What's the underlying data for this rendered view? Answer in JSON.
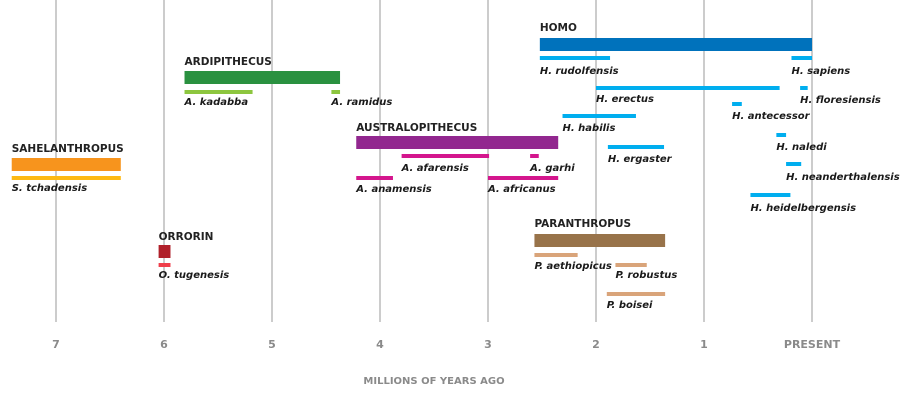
{
  "chart_data": {
    "type": "timeline",
    "title": "",
    "xlabel": "MILLIONS OF YEARS AGO",
    "ylabel": "",
    "xlim": [
      7.5,
      0
    ],
    "grid": true,
    "x_ticks": [
      {
        "value": 7,
        "label": "7"
      },
      {
        "value": 6,
        "label": "6"
      },
      {
        "value": 5,
        "label": "5"
      },
      {
        "value": 4,
        "label": "4"
      },
      {
        "value": 3,
        "label": "3"
      },
      {
        "value": 2,
        "label": "2"
      },
      {
        "value": 1,
        "label": "1"
      },
      {
        "value": 0,
        "label": "PRESENT"
      }
    ],
    "genera": [
      {
        "name": "SAHELANTHROPUS",
        "color": "#f7941d",
        "species_color": "#fdb913",
        "start": 7.41,
        "end": 6.4,
        "row": 0,
        "species": [
          {
            "name": "S. tchadensis",
            "start": 7.41,
            "end": 6.4,
            "row": 0
          }
        ]
      },
      {
        "name": "ORRORIN",
        "color": "#b0202a",
        "species_color": "#ef3e4a",
        "start": 6.05,
        "end": 5.94,
        "row": 0,
        "species": [
          {
            "name": "O. tugenesis",
            "start": 6.05,
            "end": 5.94,
            "row": 0
          }
        ]
      },
      {
        "name": "ARDIPITHECUS",
        "color": "#2a9140",
        "species_color": "#8dc63f",
        "start": 5.81,
        "end": 4.37,
        "row": 0,
        "species": [
          {
            "name": "A. kadabba",
            "start": 5.81,
            "end": 5.18,
            "row": 0
          },
          {
            "name": "A. ramidus",
            "start": 4.45,
            "end": 4.37,
            "row": 0
          }
        ]
      },
      {
        "name": "AUSTRALOPITHECUS",
        "color": "#92278f",
        "species_color": "#d4168d",
        "start": 4.22,
        "end": 2.35,
        "row": 0,
        "species": [
          {
            "name": "A. afarensis",
            "start": 3.8,
            "end": 2.99,
            "row": 0
          },
          {
            "name": "A. garhi",
            "start": 2.61,
            "end": 2.53,
            "row": 0
          },
          {
            "name": "A. anamensis",
            "start": 4.22,
            "end": 3.88,
            "row": 1
          },
          {
            "name": "A. africanus",
            "start": 3.0,
            "end": 2.35,
            "row": 1
          }
        ]
      },
      {
        "name": "HOMO",
        "color": "#0072bc",
        "species_color": "#00aeef",
        "start": 2.52,
        "end": 0,
        "row": 0,
        "species": [
          {
            "name": "H. rudolfensis",
            "start": 2.52,
            "end": 1.87,
            "row": 0
          },
          {
            "name": "H. sapiens",
            "start": 0.19,
            "end": 0.0,
            "row": 0
          },
          {
            "name": "H. erectus",
            "start": 2.0,
            "end": 0.3,
            "row": 1
          },
          {
            "name": "H. floresiensis",
            "start": 0.11,
            "end": 0.04,
            "row": 1
          },
          {
            "name": "H. antecessor",
            "start": 0.74,
            "end": 0.65,
            "row": 2
          },
          {
            "name": "H. habilis",
            "start": 2.31,
            "end": 1.63,
            "row": 2
          },
          {
            "name": "H. ergaster",
            "start": 1.89,
            "end": 1.37,
            "row": 3
          },
          {
            "name": "H. naledi",
            "start": 0.33,
            "end": 0.24,
            "row": 3
          },
          {
            "name": "H. neanderthalensis",
            "start": 0.24,
            "end": 0.1,
            "row": 4
          },
          {
            "name": "H. heidelbergensis",
            "start": 0.57,
            "end": 0.2,
            "row": 5
          }
        ]
      },
      {
        "name": "PARANTHROPUS",
        "color": "#98734a",
        "species_color": "#d9a47a",
        "start": 2.57,
        "end": 1.36,
        "row": 0,
        "species": [
          {
            "name": "P. aethiopicus",
            "start": 2.57,
            "end": 2.17,
            "row": 0
          },
          {
            "name": "P. robustus",
            "start": 1.82,
            "end": 1.53,
            "row": 1
          },
          {
            "name": "P. boisei",
            "start": 1.9,
            "end": 1.36,
            "row": 2
          }
        ]
      }
    ]
  }
}
